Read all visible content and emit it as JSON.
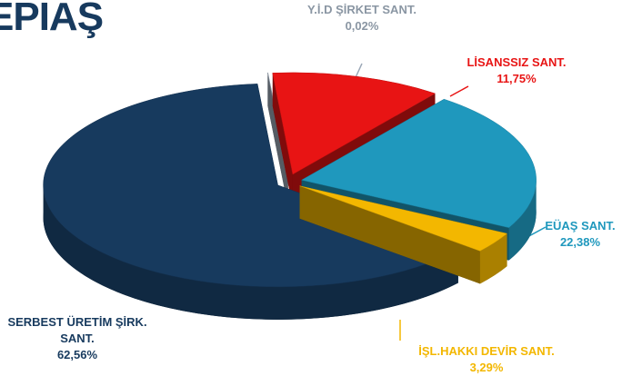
{
  "logo": "EPIAŞ",
  "chart_data": {
    "type": "pie",
    "categories": [
      "Y.İ.D ŞİRKET SANT.",
      "LİSANSSIZ SANT.",
      "EÜAŞ SANT.",
      "İŞL.HAKKI DEVİR SANT.",
      "SERBEST ÜRETİM ŞİRK. SANT."
    ],
    "values": [
      0.02,
      11.75,
      22.38,
      3.29,
      62.56
    ],
    "value_labels": [
      "0,02%",
      "11,75%",
      "22,38%",
      "3,29%",
      "62,56%"
    ],
    "colors": [
      "#9aa7b6",
      "#e81414",
      "#1f98bd",
      "#f3b700",
      "#173a5e"
    ]
  }
}
